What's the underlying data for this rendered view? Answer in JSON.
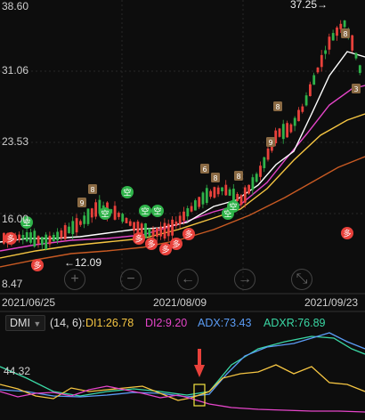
{
  "price_axis": {
    "labels": [
      "38.60",
      "31.06",
      "23.53",
      "16.00",
      "8.47"
    ]
  },
  "annotations": {
    "high_label": "37.25→",
    "low_label": "←12.09",
    "signal_buy": "多",
    "signal_sell": "空"
  },
  "dates": [
    "2021/06/25",
    "2021/08/09",
    "2021/09/23"
  ],
  "controls": {
    "zoom_in": "+",
    "zoom_out": "−",
    "back": "←",
    "forward": "→",
    "expand": "⤡"
  },
  "indicator": {
    "name": "DMI",
    "params": "(14, 6):",
    "di1": "DI1:26.78",
    "di2": "DI2:9.20",
    "adx": "ADX:73.43",
    "adxr": "ADXR:76.89",
    "axis_value": "44.32"
  },
  "colors": {
    "up": "#e8413b",
    "down": "#2fb34a",
    "ma_white": "#ffffff",
    "ma_yellow": "#f5c542",
    "ma_magenta": "#e545c9",
    "ma_orange": "#c85a23",
    "di1": "#f5c542",
    "di2": "#e545c9",
    "adx": "#5b9cf5",
    "adxr": "#3ad7a4",
    "arrow": "#e8413b"
  }
}
